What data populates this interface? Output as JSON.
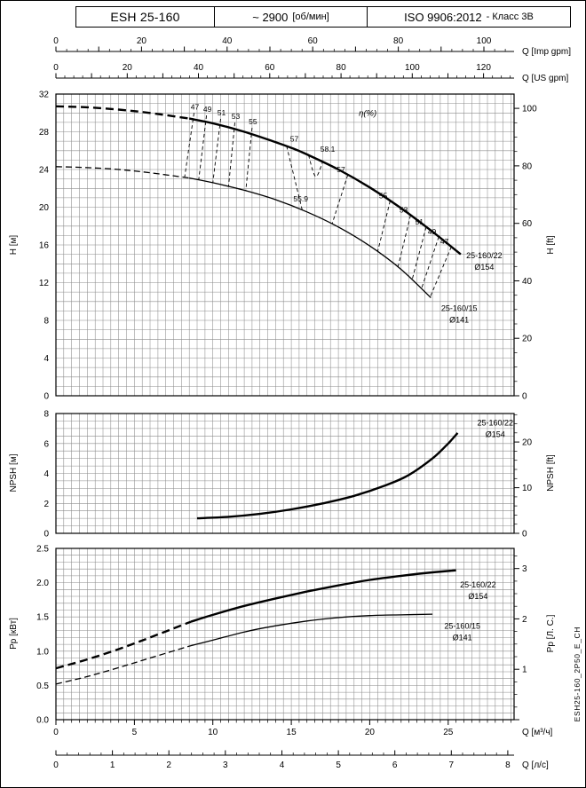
{
  "colors": {
    "ink": "#000000",
    "grid": "#8c8c8c",
    "background": "#ffffff"
  },
  "header": {
    "model": "ESH 25-160",
    "speed_value": "~ 2900",
    "speed_unit": "[об/мин]",
    "standard": "ISO 9906:2012",
    "standard_class": "- Класс 3В"
  },
  "side_code": "ESH25-160_2P50_E_CH",
  "top_axes": [
    {
      "name": "q-imp-gpm",
      "label": "Q [Imp gpm]",
      "tick_labels": [
        0,
        20,
        40,
        60,
        80,
        100
      ],
      "factor_to_m3h": 0.27277,
      "minor": 2.5,
      "major": 10
    },
    {
      "name": "q-us-gpm",
      "label": "Q [US gpm]",
      "tick_labels": [
        0,
        20,
        40,
        60,
        80,
        100,
        120
      ],
      "factor_to_m3h": 0.22712,
      "minor": 2.5,
      "major": 10
    }
  ],
  "bottom_axes": [
    {
      "name": "q-m3h",
      "label": "Q [м³/ч]",
      "tick_labels": [
        0,
        5,
        10,
        15,
        20,
        25
      ],
      "factor_to_m3h": 1,
      "minor": 0.5,
      "major": 5
    },
    {
      "name": "q-ls",
      "label": "Q [л/с]",
      "tick_labels": [
        0,
        1,
        2,
        3,
        4,
        5,
        6,
        7,
        8
      ],
      "factor_to_m3h": 3.6,
      "minor": 0.2,
      "major": 1
    }
  ],
  "chart_data": [
    {
      "type": "line",
      "name": "head-flow",
      "title": "H-Q performance curves",
      "xlabel": "Q [м³/ч]",
      "ylabel_left": "H [м]",
      "ylabel_right": "H [ft]",
      "xlim": [
        0,
        29.2
      ],
      "ylim": [
        0,
        32
      ],
      "yticks_left": [
        0,
        4,
        8,
        12,
        16,
        20,
        24,
        28,
        32
      ],
      "ygrid_step": 1,
      "right_axis": {
        "unit_per_left": 0.3048,
        "tick_labels": [
          0,
          20,
          40,
          60,
          80,
          100
        ],
        "minor": 5,
        "major": 20
      },
      "series": [
        {
          "name": "25-160/22 Ø154",
          "label_lines": [
            "25-160/22",
            "Ø154"
          ],
          "label_pos": {
            "q": 27.3,
            "v": 14.6
          },
          "weight": "thick",
          "dash_until": 8.5,
          "x": [
            0,
            2,
            4,
            6,
            8.5,
            10,
            12,
            14,
            15,
            16,
            18,
            20,
            22,
            24,
            25.8
          ],
          "y": [
            30.7,
            30.6,
            30.35,
            30.0,
            29.4,
            28.9,
            28.0,
            26.9,
            26.3,
            25.6,
            24.0,
            22.1,
            19.9,
            17.4,
            15.0
          ]
        },
        {
          "name": "25-160/15 Ø141",
          "label_lines": [
            "25-160/15",
            "Ø141"
          ],
          "label_pos": {
            "q": 25.7,
            "v": 9.0
          },
          "weight": "thin",
          "dash_until": 8.5,
          "x": [
            0,
            2,
            4,
            6,
            8.5,
            10,
            12,
            14,
            16,
            18,
            20,
            22,
            23.9
          ],
          "y": [
            24.3,
            24.2,
            24.0,
            23.65,
            23.1,
            22.6,
            21.8,
            20.8,
            19.5,
            17.9,
            15.9,
            13.4,
            10.4
          ]
        }
      ],
      "efficiency": {
        "label": "η(%)",
        "label_pos": {
          "q": 19.3,
          "v": 29.7
        },
        "left_isolines": [
          {
            "eta": "47",
            "q_top": 8.8,
            "q_bot": 8.2
          },
          {
            "eta": "49",
            "q_top": 9.6,
            "q_bot": 9.1
          },
          {
            "eta": "51",
            "q_top": 10.5,
            "q_bot": 10.0
          },
          {
            "eta": "53",
            "q_top": 11.4,
            "q_bot": 11.0
          },
          {
            "eta": "55",
            "q_top": 12.5,
            "q_bot": 12.1
          }
        ],
        "mid_isoline": {
          "eta": "57",
          "q_top": 14.7,
          "q_bot": 15.7
        },
        "right_isolines": [
          {
            "eta": "57",
            "q_top": 18.6,
            "q_bot": 17.6
          },
          {
            "eta": "55",
            "q_top": 21.3,
            "q_bot": 20.5
          },
          {
            "eta": "53",
            "q_top": 22.6,
            "q_bot": 21.8
          },
          {
            "eta": "51",
            "q_top": 23.6,
            "q_bot": 22.7
          },
          {
            "eta": "49",
            "q_top": 24.4,
            "q_bot": 23.3
          },
          {
            "eta": "47",
            "q_top": 25.2,
            "q_bot": 23.85
          }
        ],
        "bep_marker": {
          "label": "58.1",
          "q_points": [
            16.1,
            16.55,
            17.0
          ],
          "dip": 1.9,
          "label_pos": {
            "q": 16.85,
            "v": 25.9
          }
        },
        "bep2_label": {
          "label": "55.9",
          "pos": {
            "q": 15.6,
            "v": 20.6
          }
        }
      }
    },
    {
      "type": "line",
      "name": "npsh",
      "title": "NPSH curve",
      "ylabel_left": "NPSH [м]",
      "ylabel_right": "NPSH [ft]",
      "xlim": [
        0,
        29.2
      ],
      "ylim": [
        0,
        8
      ],
      "yticks_left": [
        0,
        2,
        4,
        6,
        8
      ],
      "ygrid_step": 0.5,
      "right_axis": {
        "unit_per_left": 0.3048,
        "tick_labels": [
          0,
          10,
          20
        ],
        "minor": 2,
        "major": 10
      },
      "series": [
        {
          "name": "25-160/22 Ø154",
          "label_lines": [
            "25-160/22",
            "Ø154"
          ],
          "label_pos": {
            "q": 28.0,
            "v": 7.2
          },
          "weight": "thick",
          "dash_until": 0,
          "x": [
            9,
            11,
            13,
            15,
            17,
            19,
            21,
            22.5,
            24,
            25,
            25.6
          ],
          "y": [
            1.0,
            1.1,
            1.3,
            1.6,
            2.0,
            2.5,
            3.2,
            3.9,
            5.0,
            6.0,
            6.7
          ]
        }
      ]
    },
    {
      "type": "line",
      "name": "power",
      "title": "Power curves",
      "ylabel_left": "Pр [кВт]",
      "ylabel_right": "Pр [Л. С.]",
      "xlim": [
        0,
        29.2
      ],
      "ylim": [
        0,
        2.5
      ],
      "yticks_left": [
        "0.0",
        "0.5",
        "1.0",
        "1.5",
        "2.0",
        "2.5"
      ],
      "ygrid_step": 0.1,
      "right_axis": {
        "unit_per_left": 0.7355,
        "tick_labels": [
          1,
          2,
          3
        ],
        "minor": 0.25,
        "major": 1
      },
      "series": [
        {
          "name": "25-160/22 Ø154",
          "label_lines": [
            "25-160/22",
            "Ø154"
          ],
          "label_pos": {
            "q": 26.9,
            "v": 1.93
          },
          "weight": "thick",
          "dash_until": 8.6,
          "x": [
            0,
            2,
            4,
            6,
            8.6,
            10,
            12,
            14,
            16,
            18,
            20,
            22,
            24,
            25.5
          ],
          "y": [
            0.75,
            0.88,
            1.03,
            1.2,
            1.43,
            1.53,
            1.66,
            1.77,
            1.87,
            1.96,
            2.04,
            2.1,
            2.15,
            2.18
          ]
        },
        {
          "name": "25-160/15 Ø141",
          "label_lines": [
            "25-160/15",
            "Ø141"
          ],
          "label_pos": {
            "q": 25.9,
            "v": 1.33
          },
          "weight": "thin",
          "dash_until": 8.6,
          "x": [
            0,
            2,
            4,
            6,
            8.6,
            10,
            12,
            14,
            16,
            18,
            20,
            22,
            24
          ],
          "y": [
            0.52,
            0.63,
            0.76,
            0.9,
            1.08,
            1.16,
            1.28,
            1.37,
            1.44,
            1.49,
            1.52,
            1.53,
            1.54
          ]
        }
      ]
    }
  ]
}
